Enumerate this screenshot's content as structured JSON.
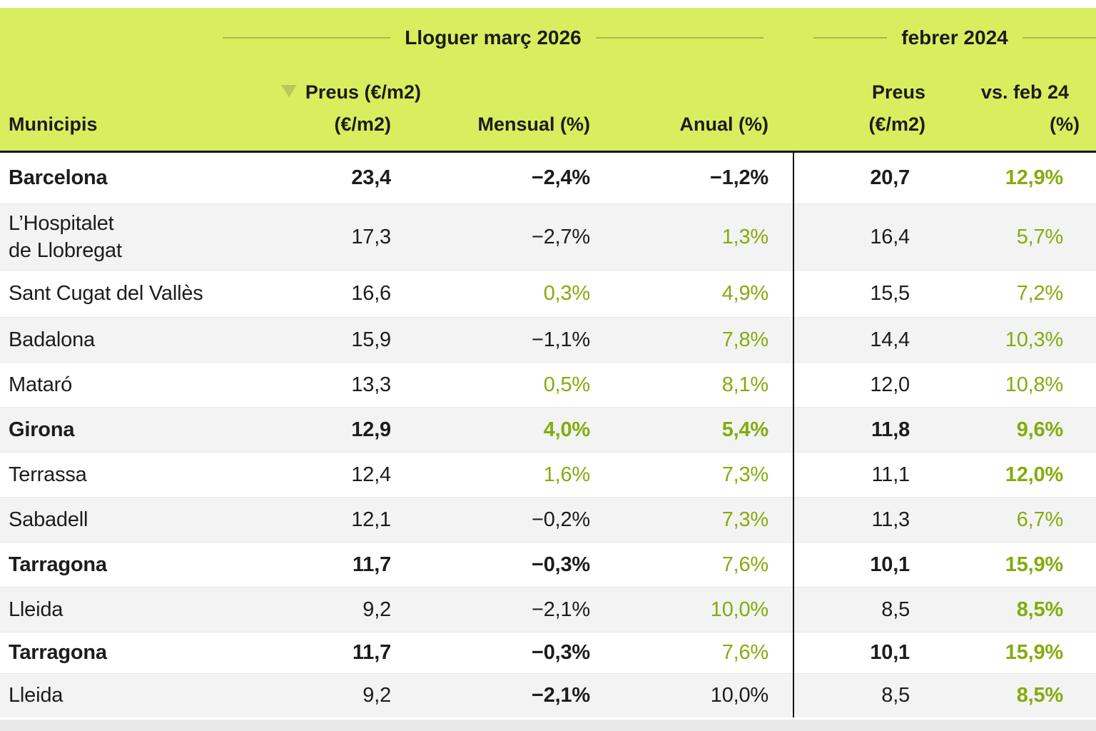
{
  "colors": {
    "header_bg": "#d9ee5e",
    "rule_line": "#a7b84c",
    "sort_tri": "#b7c85c",
    "accent_green": "#85ab0e",
    "dark_text": "#1c1c1c",
    "alt_row_bg": "#f3f3f3"
  },
  "table": {
    "groups": [
      {
        "label": "Lloguer març 2026"
      },
      {
        "label": "febrer 2024"
      }
    ],
    "columns": {
      "municipis": "Municipis",
      "preus_l1": "Preus (€/m2)",
      "preus_l2": "(€/m2)",
      "mensual": "Mensual (%)",
      "anual": "Anual (%)",
      "preus_feb_l1": "Preus",
      "preus_feb_l2": "(€/m2)",
      "vs_l1": "vs. feb 24",
      "vs_l2": "(%)"
    },
    "sort_icon": "triangle-down-icon",
    "rows": [
      {
        "name": "Barcelona",
        "name_bold": true,
        "cells": [
          {
            "t": "23,4",
            "b": true
          },
          {
            "t": "−2,4%",
            "b": true
          },
          {
            "t": "−1,2%",
            "b": true
          },
          {
            "t": "20,7",
            "b": true
          },
          {
            "t": "12,9%",
            "b": true,
            "g": true
          }
        ]
      },
      {
        "name": "L’Hospitalet\nde Llobregat",
        "cells": [
          {
            "t": "17,3"
          },
          {
            "t": "−2,7%"
          },
          {
            "t": "1,3%",
            "g": true
          },
          {
            "t": "16,4"
          },
          {
            "t": "5,7%",
            "g": true
          }
        ]
      },
      {
        "name": "Sant Cugat del Vallès",
        "cells": [
          {
            "t": "16,6"
          },
          {
            "t": "0,3%",
            "g": true
          },
          {
            "t": "4,9%",
            "g": true
          },
          {
            "t": "15,5"
          },
          {
            "t": "7,2%",
            "g": true
          }
        ]
      },
      {
        "name": "Badalona",
        "cells": [
          {
            "t": "15,9"
          },
          {
            "t": "−1,1%"
          },
          {
            "t": "7,8%",
            "g": true
          },
          {
            "t": "14,4"
          },
          {
            "t": "10,3%",
            "g": true
          }
        ]
      },
      {
        "name": "Mataró",
        "cells": [
          {
            "t": "13,3"
          },
          {
            "t": "0,5%",
            "g": true
          },
          {
            "t": "8,1%",
            "g": true
          },
          {
            "t": "12,0"
          },
          {
            "t": "10,8%",
            "g": true
          }
        ]
      },
      {
        "name": "Girona",
        "name_bold": true,
        "cells": [
          {
            "t": "12,9",
            "b": true
          },
          {
            "t": "4,0%",
            "b": true,
            "g": true
          },
          {
            "t": "5,4%",
            "b": true,
            "g": true
          },
          {
            "t": "11,8",
            "b": true
          },
          {
            "t": "9,6%",
            "b": true,
            "g": true
          }
        ]
      },
      {
        "name": "Terrassa",
        "cells": [
          {
            "t": "12,4"
          },
          {
            "t": "1,6%",
            "g": true
          },
          {
            "t": "7,3%",
            "g": true
          },
          {
            "t": "11,1"
          },
          {
            "t": "12,0%",
            "b": true,
            "g": true
          }
        ]
      },
      {
        "name": "Sabadell",
        "cells": [
          {
            "t": "12,1"
          },
          {
            "t": "−0,2%"
          },
          {
            "t": "7,3%",
            "g": true
          },
          {
            "t": "11,3"
          },
          {
            "t": "6,7%",
            "g": true
          }
        ]
      },
      {
        "name": "Tarragona",
        "name_bold": true,
        "cells": [
          {
            "t": "11,7",
            "b": true
          },
          {
            "t": "−0,3%",
            "b": true
          },
          {
            "t": "7,6%",
            "g": true
          },
          {
            "t": "10,1",
            "b": true
          },
          {
            "t": "15,9%",
            "b": true,
            "g": true
          }
        ]
      },
      {
        "name": "Lleida",
        "cells": [
          {
            "t": "9,2"
          },
          {
            "t": "−2,1%"
          },
          {
            "t": "10,0%",
            "g": true
          },
          {
            "t": "8,5"
          },
          {
            "t": "8,5%",
            "b": true,
            "g": true
          }
        ]
      },
      {
        "name": "Tarragona",
        "name_bold": true,
        "cells": [
          {
            "t": "11,7",
            "b": true
          },
          {
            "t": "−0,3%",
            "b": true
          },
          {
            "t": "7,6%",
            "g": true
          },
          {
            "t": "10,1",
            "b": true
          },
          {
            "t": "15,9%",
            "b": true,
            "g": true
          }
        ]
      },
      {
        "name": "Lleida",
        "cells": [
          {
            "t": "9,2"
          },
          {
            "t": "−2,1%",
            "b": true
          },
          {
            "t": "10,0%"
          },
          {
            "t": "8,5"
          },
          {
            "t": "8,5%",
            "b": true,
            "g": true
          }
        ]
      }
    ]
  },
  "chart_data": {
    "type": "table",
    "title": "Lloguer març 2026 / febrer 2024",
    "column_groups": [
      "Lloguer març 2026",
      "febrer 2024"
    ],
    "columns": [
      "Municipis",
      "Preus (€/m2)",
      "Mensual (%)",
      "Anual (%)",
      "Preus (€/m2) febrer 2024",
      "vs. feb 24 (%)"
    ],
    "rows": [
      [
        "Barcelona",
        "23,4",
        "−2,4%",
        "−1,2%",
        "20,7",
        "12,9%"
      ],
      [
        "L’Hospitalet de Llobregat",
        "17,3",
        "−2,7%",
        "1,3%",
        "16,4",
        "5,7%"
      ],
      [
        "Sant Cugat del Vallès",
        "16,6",
        "0,3%",
        "4,9%",
        "15,5",
        "7,2%"
      ],
      [
        "Badalona",
        "15,9",
        "−1,1%",
        "7,8%",
        "14,4",
        "10,3%"
      ],
      [
        "Mataró",
        "13,3",
        "0,5%",
        "8,1%",
        "12,0",
        "10,8%"
      ],
      [
        "Girona",
        "12,9",
        "4,0%",
        "5,4%",
        "11,8",
        "9,6%"
      ],
      [
        "Terrassa",
        "12,4",
        "1,6%",
        "7,3%",
        "11,1",
        "12,0%"
      ],
      [
        "Sabadell",
        "12,1",
        "−0,2%",
        "7,3%",
        "11,3",
        "6,7%"
      ],
      [
        "Tarragona",
        "11,7",
        "−0,3%",
        "7,6%",
        "10,1",
        "15,9%"
      ],
      [
        "Lleida",
        "9,2",
        "−2,1%",
        "10,0%",
        "8,5",
        "8,5%"
      ],
      [
        "Tarragona",
        "11,7",
        "−0,3%",
        "7,6%",
        "10,1",
        "15,9%"
      ],
      [
        "Lleida",
        "9,2",
        "−2,1%",
        "10,0%",
        "8,5",
        "8,5%"
      ]
    ],
    "legend_position": "none",
    "grid": false
  }
}
